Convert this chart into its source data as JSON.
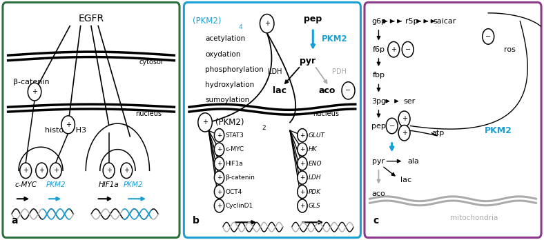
{
  "fig_width": 7.88,
  "fig_height": 3.48,
  "bg_color": "#ffffff",
  "blue_color": "#1a9fd4",
  "gray_color": "#aaaaaa",
  "panel_a": {
    "border_color": "#2d6e3e",
    "label": "a"
  },
  "panel_b": {
    "border_color": "#1a9fd4",
    "label": "b",
    "pkm2_4": "(PKM2)",
    "pkm2_4_sub": "4",
    "pkm2_2": "(PKM2)",
    "pkm2_2_sub": "2",
    "modifications": [
      "acetylation",
      "oxydation",
      "phosphorylation",
      "hydroxylation",
      "sumoylation"
    ],
    "tf_targets": [
      "STAT3",
      "c-MYC",
      "HIF1a",
      "β-catenin",
      "OCT4",
      "CyclinD1"
    ],
    "gene_targets": [
      "GLUT",
      "HK",
      "ENO",
      "LDH",
      "PDK",
      "GLS"
    ]
  },
  "panel_c": {
    "border_color": "#8b3a8b",
    "label": "c"
  }
}
